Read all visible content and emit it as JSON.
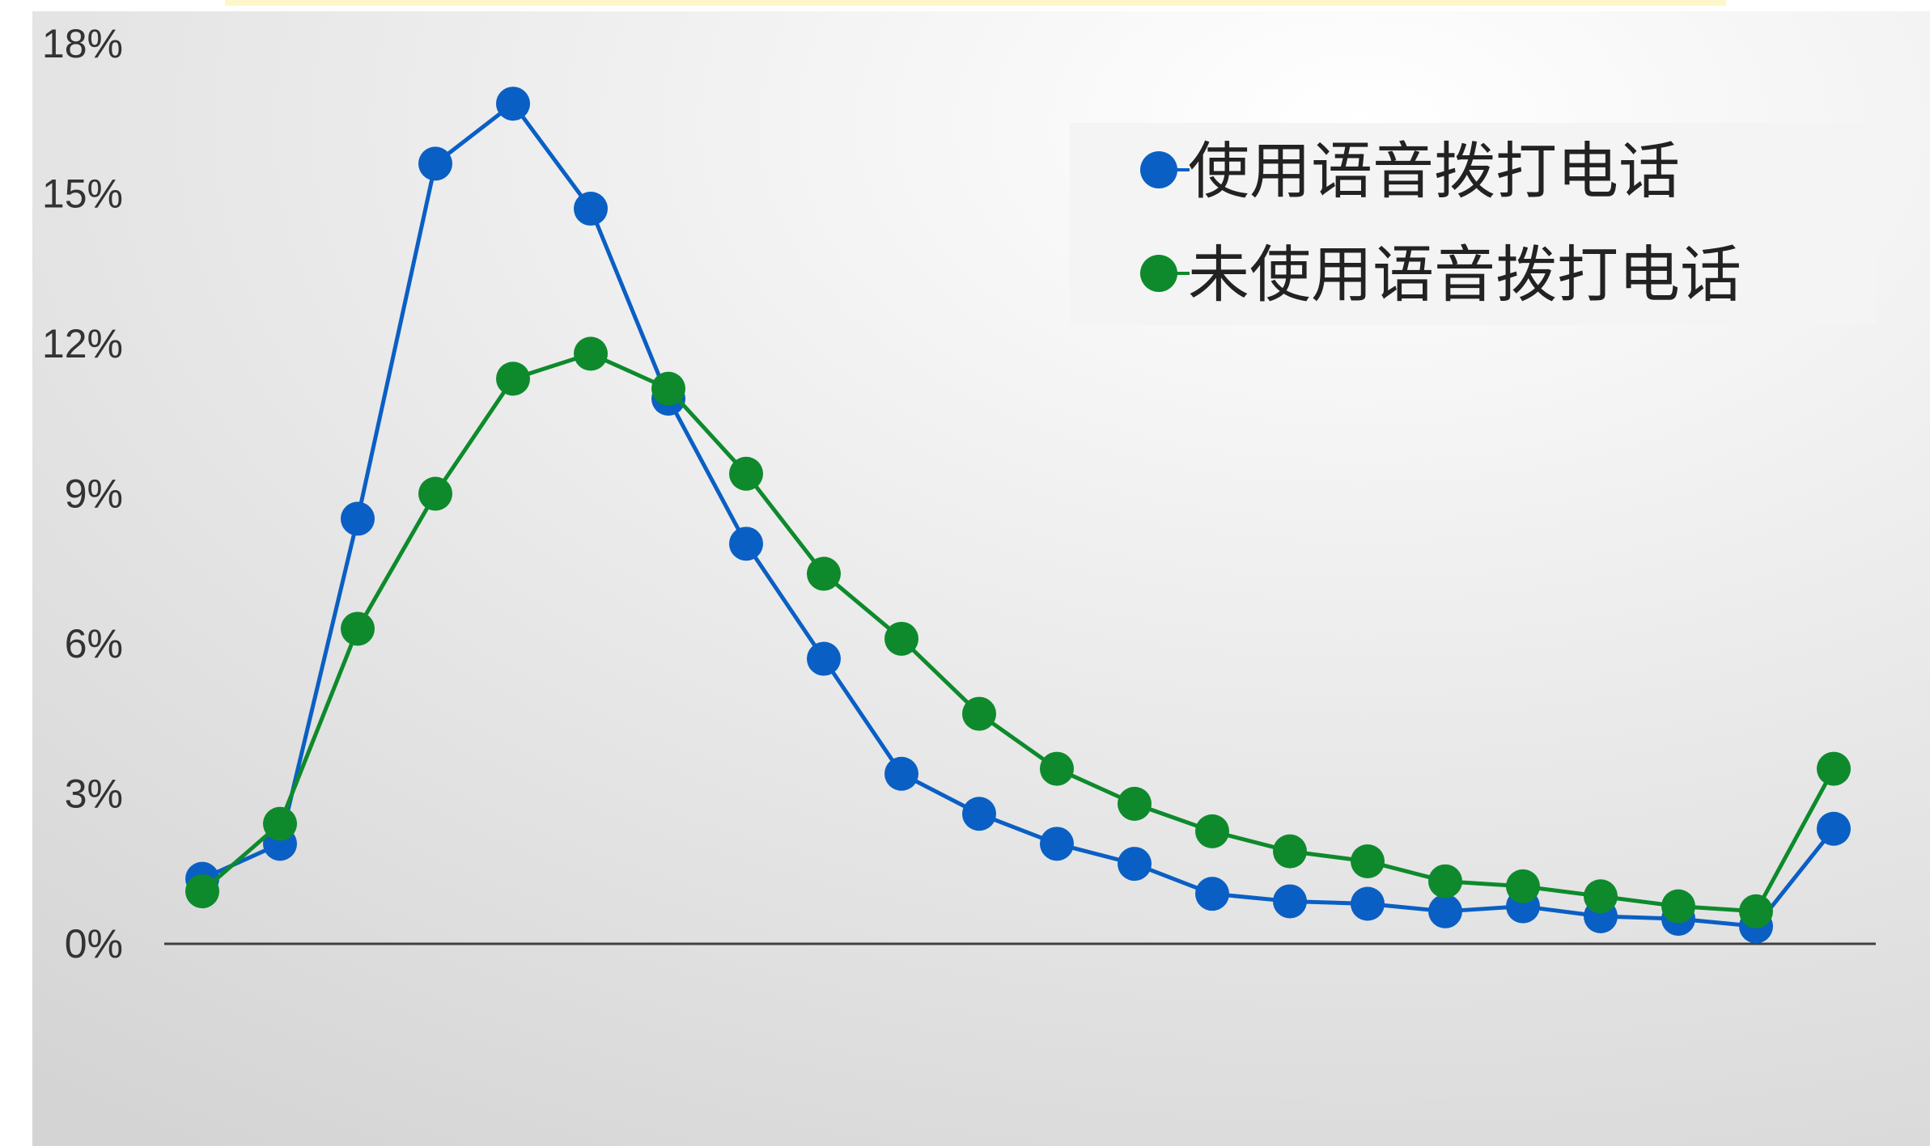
{
  "chart_data": {
    "type": "line",
    "title": "",
    "xlabel": "",
    "ylabel": "",
    "x": [
      1,
      2,
      3,
      4,
      5,
      6,
      7,
      8,
      9,
      10,
      11,
      12,
      13,
      14,
      15,
      16,
      17,
      18,
      19,
      20,
      21,
      22
    ],
    "ylim": [
      0,
      18
    ],
    "yticks": [
      "0%",
      "3%",
      "6%",
      "9%",
      "12%",
      "15%",
      "18%"
    ],
    "ytick_values": [
      0,
      3,
      6,
      9,
      12,
      15,
      18
    ],
    "grid": false,
    "legend_position": "top-right",
    "series": [
      {
        "name": "使用语音拨打电话",
        "color": "#0a5fc4",
        "values": [
          1.3,
          2.0,
          8.5,
          15.6,
          16.8,
          14.7,
          10.9,
          8.0,
          5.7,
          3.4,
          2.6,
          2.0,
          1.6,
          1.0,
          0.85,
          0.8,
          0.65,
          0.75,
          0.55,
          0.5,
          0.35,
          2.3
        ]
      },
      {
        "name": "未使用语音拨打电话",
        "color": "#0e8a2c",
        "values": [
          1.05,
          2.4,
          6.3,
          9.0,
          11.3,
          11.8,
          11.1,
          9.4,
          7.4,
          6.1,
          4.6,
          3.5,
          2.8,
          2.25,
          1.85,
          1.65,
          1.25,
          1.15,
          0.95,
          0.75,
          0.65,
          3.5
        ]
      }
    ],
    "colors": {
      "panel_top": "#ffffff",
      "panel_bottom": "#d4d4d4",
      "highlight_bar": "#fdf6c8",
      "axis": "#404040",
      "legend_bg": "#f4f4f4"
    }
  }
}
